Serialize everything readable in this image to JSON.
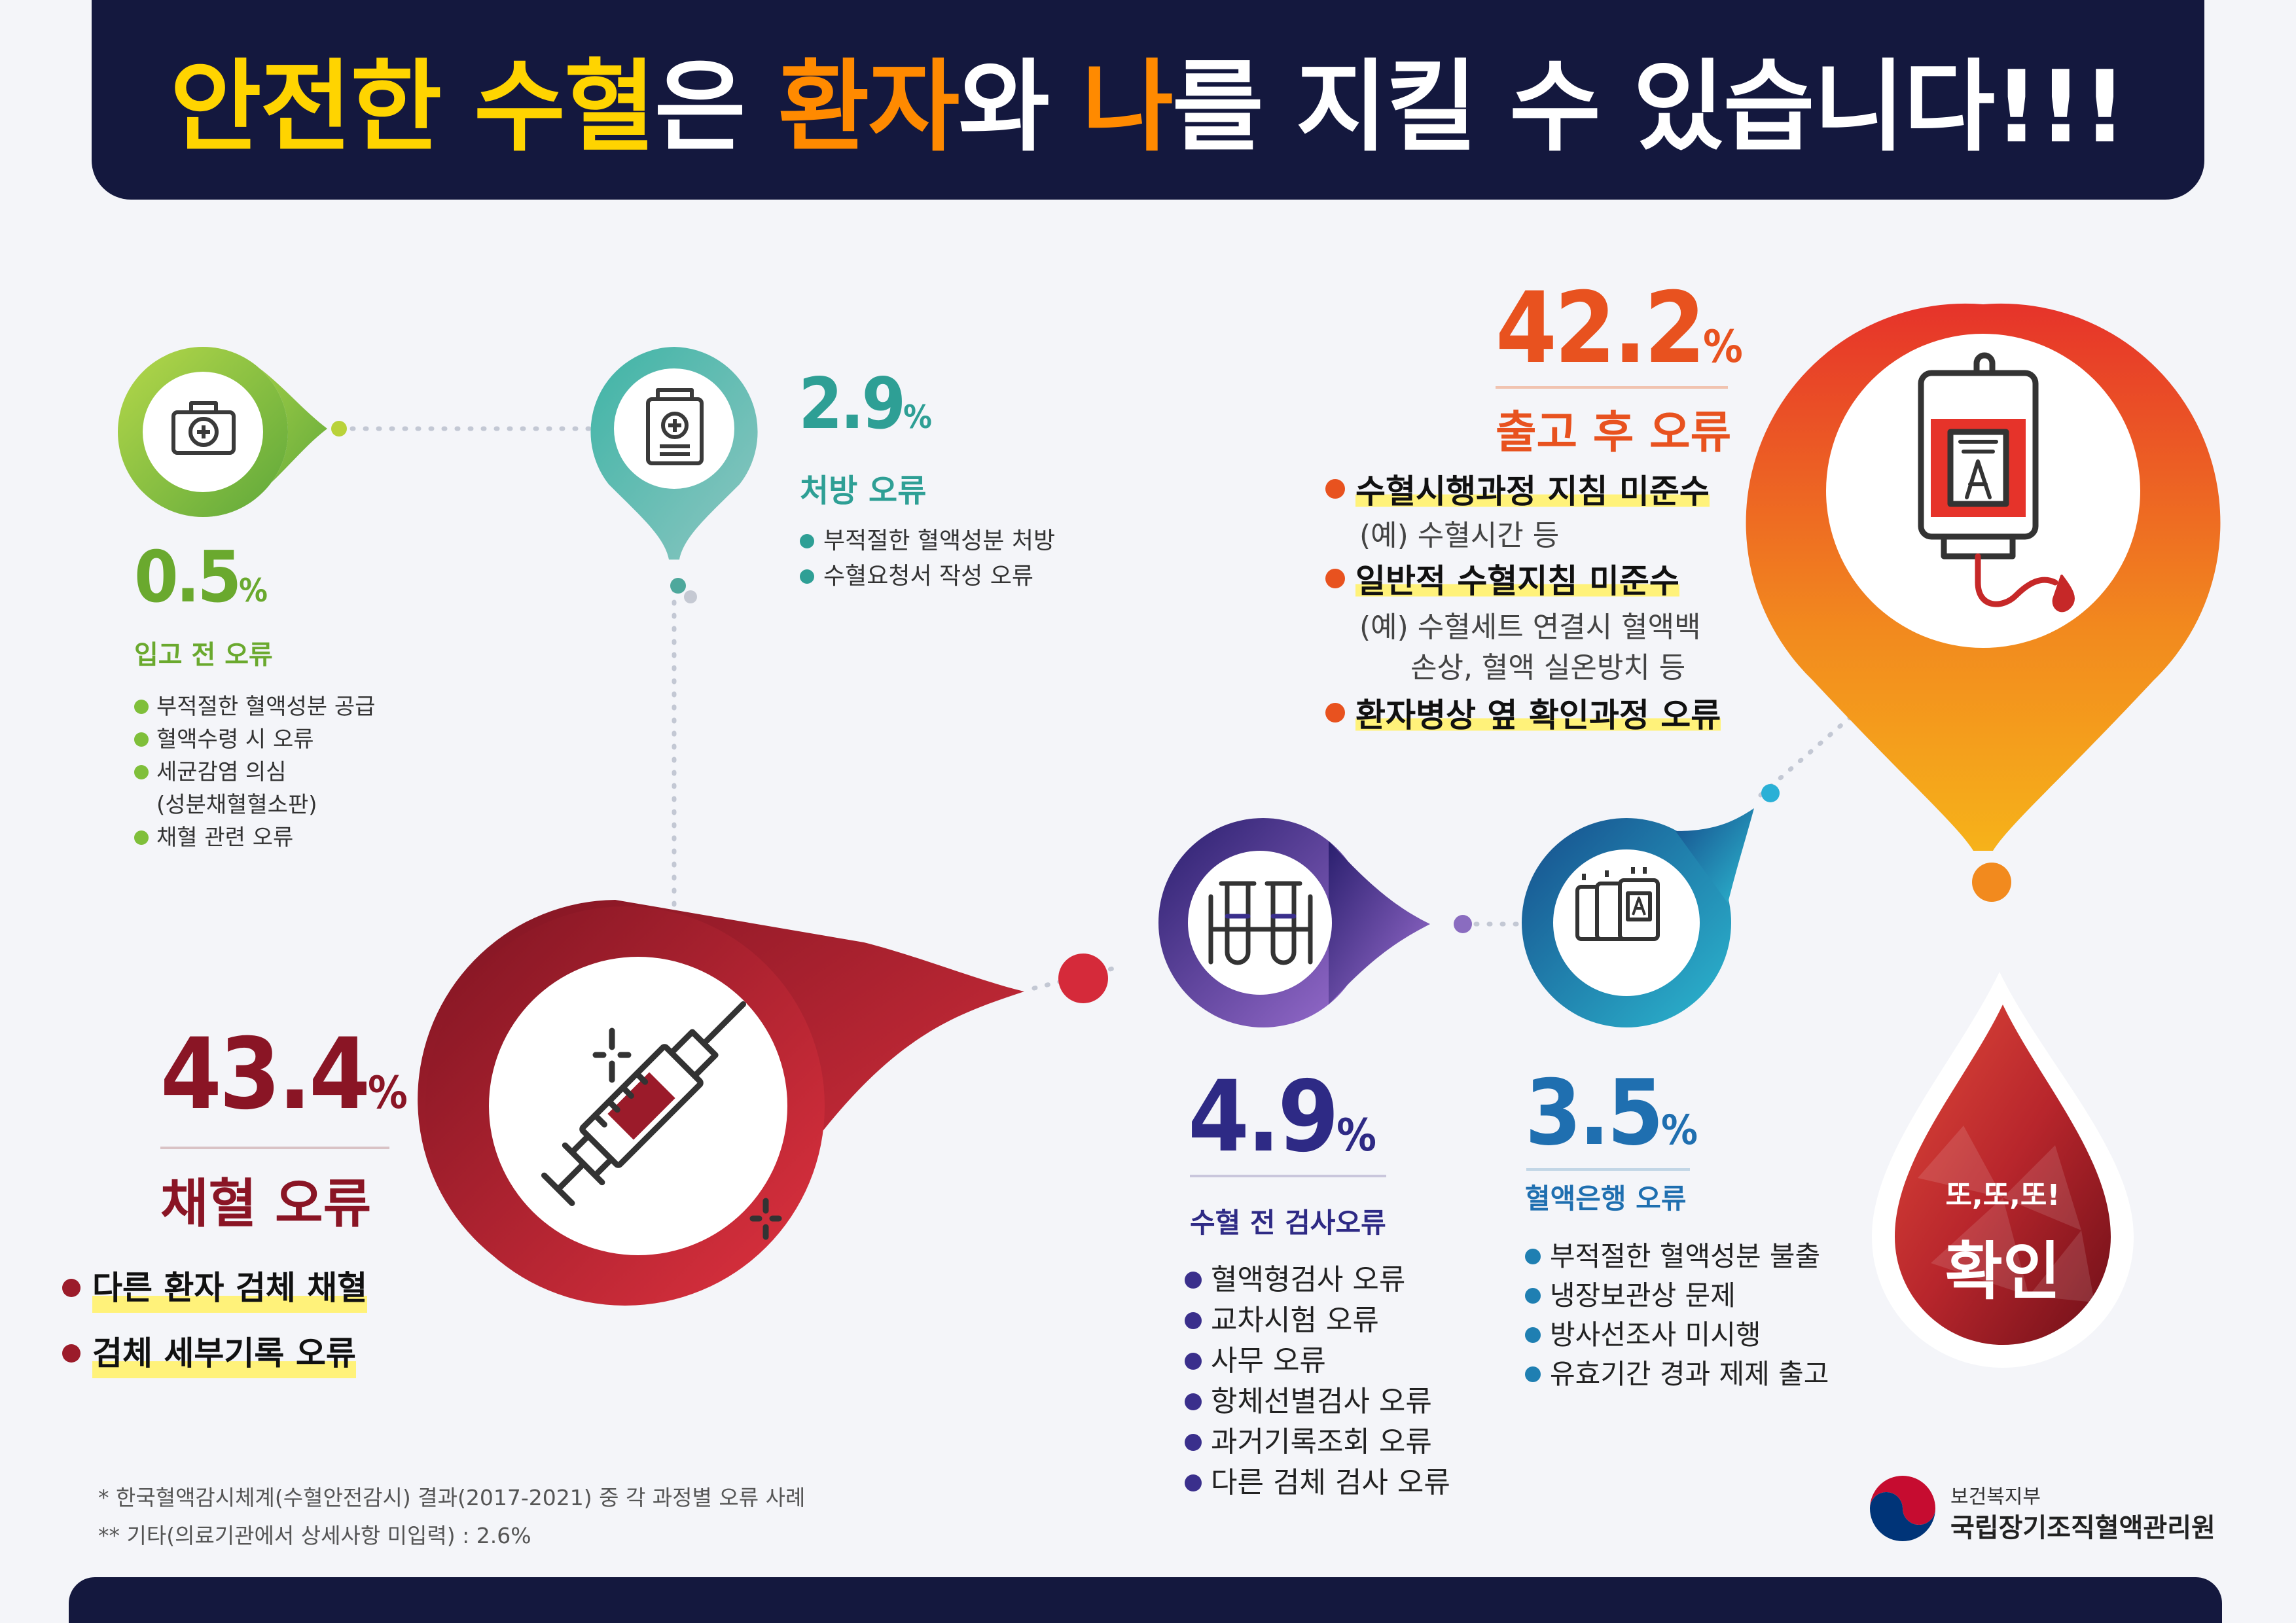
{
  "title": {
    "part1": "안전한 수혈",
    "part2": "은 ",
    "part3": "환자",
    "part4": "와 ",
    "part5": "나",
    "part6": "를 지킬 수 있습니다!!!"
  },
  "stages": [
    {
      "id": "pre_receipt",
      "percent": "0.5",
      "unit": "%",
      "category": "입고 전 오류",
      "color": "#7fbf3a",
      "icon": "medical-kit-icon",
      "items": [
        "부적절한 혈액성분 공급",
        "혈액수령 시 오류",
        "세균감염 의심",
        "(성분채혈혈소판)",
        "채혈 관련 오류"
      ]
    },
    {
      "id": "prescription",
      "percent": "2.9",
      "unit": "%",
      "category": "처방 오류",
      "color": "#2e9f95",
      "icon": "medical-record-icon",
      "items": [
        "부적절한 혈액성분 처방",
        "수혈요청서 작성 오류"
      ]
    },
    {
      "id": "collection",
      "percent": "43.4",
      "unit": "%",
      "category": "채혈 오류",
      "color": "#9b1b2a",
      "icon": "syringe-icon",
      "items": [
        "다른 환자 검체 채혈",
        "검체 세부기록 오류"
      ]
    },
    {
      "id": "pretest",
      "percent": "4.9",
      "unit": "%",
      "category": "수혈 전 검사오류",
      "color": "#3a2f8c",
      "icon": "test-tubes-icon",
      "items": [
        "혈액형검사 오류",
        "교차시험 오류",
        "사무 오류",
        "항체선별검사 오류",
        "과거기록조회 오류",
        "다른 검체 검사 오류"
      ]
    },
    {
      "id": "bloodbank",
      "percent": "3.5",
      "unit": "%",
      "category": "혈액은행 오류",
      "color": "#1f7fb2",
      "icon": "blood-bags-icon",
      "items": [
        "부적절한 혈액성분 불출",
        "냉장보관상 문제",
        "방사선조사 미시행",
        "유효기간 경과 제제 출고"
      ]
    },
    {
      "id": "post_release",
      "percent": "42.2",
      "unit": "%",
      "category": "출고 후 오류",
      "color": "#e8521f",
      "icon": "blood-bag-icon",
      "items": [
        {
          "main": "수혈시행과정 지침 미준수",
          "subs": [
            "(예) 수혈시간 등"
          ]
        },
        {
          "main": "일반적 수혈지침 미준수",
          "subs": [
            "(예) 수혈세트 연결시 혈액백",
            "손상, 혈액 실온방치 등"
          ]
        },
        {
          "main": "환자병상 옆 확인과정 오류",
          "subs": []
        }
      ]
    }
  ],
  "confirm": {
    "line1": "또,또,또!",
    "line2": "확인"
  },
  "footnotes": [
    "* 한국혈액감시체계(수혈안전감시) 결과(2017-2021) 중 각 과정별 오류 사례",
    "** 기타(의료기관에서 상세사항 미입력) : 2.6%"
  ],
  "org": {
    "ministry": "보건복지부",
    "agency": "국립장기조직혈액관리원"
  }
}
